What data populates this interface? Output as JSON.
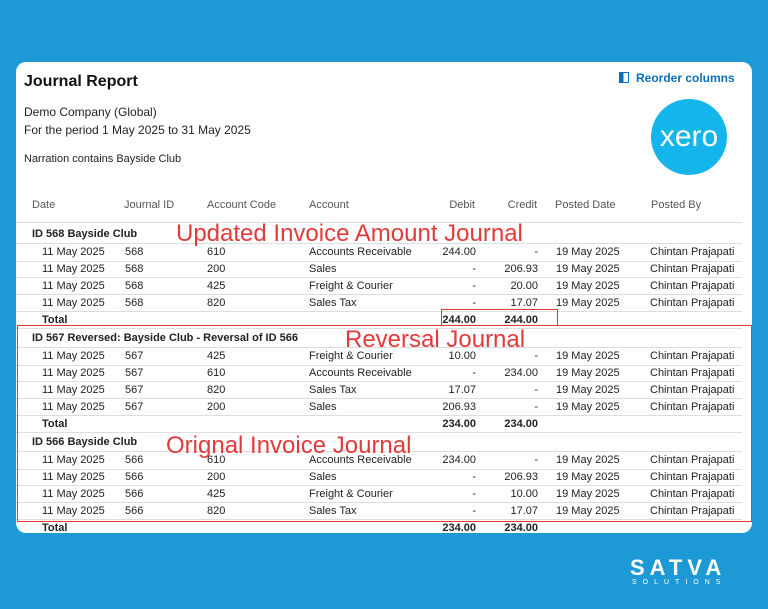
{
  "header": {
    "title": "Journal Report",
    "reorder": "Reorder columns",
    "company": "Demo Company (Global)",
    "period": "For the period 1 May 2025 to 31 May 2025",
    "narration": "Narration contains Bayside Club",
    "logo": "xero"
  },
  "columns": [
    "Date",
    "Journal ID",
    "Account Code",
    "Account",
    "Debit",
    "Credit",
    "Posted Date",
    "Posted By"
  ],
  "journals": [
    {
      "title": "ID 568 Bayside Club",
      "annotation": "Updated Invoice Amount Journal",
      "rows": [
        [
          "11 May 2025",
          "568",
          "610",
          "Accounts Receivable",
          "244.00",
          "-",
          "19 May 2025",
          "Chintan Prajapati"
        ],
        [
          "11 May 2025",
          "568",
          "200",
          "Sales",
          "-",
          "206.93",
          "19 May 2025",
          "Chintan Prajapati"
        ],
        [
          "11 May 2025",
          "568",
          "425",
          "Freight & Courier",
          "-",
          "20.00",
          "19 May 2025",
          "Chintan Prajapati"
        ],
        [
          "11 May 2025",
          "568",
          "820",
          "Sales Tax",
          "-",
          "17.07",
          "19 May 2025",
          "Chintan Prajapati"
        ]
      ],
      "total": {
        "label": "Total",
        "debit": "244.00",
        "credit": "244.00"
      }
    },
    {
      "title": "ID 567 Reversed: Bayside Club - Reversal of ID 566",
      "annotation": "Reversal Journal",
      "rows": [
        [
          "11 May 2025",
          "567",
          "425",
          "Freight & Courier",
          "10.00",
          "-",
          "19 May 2025",
          "Chintan Prajapati"
        ],
        [
          "11 May 2025",
          "567",
          "610",
          "Accounts Receivable",
          "-",
          "234.00",
          "19 May 2025",
          "Chintan Prajapati"
        ],
        [
          "11 May 2025",
          "567",
          "820",
          "Sales Tax",
          "17.07",
          "-",
          "19 May 2025",
          "Chintan Prajapati"
        ],
        [
          "11 May 2025",
          "567",
          "200",
          "Sales",
          "206.93",
          "-",
          "19 May 2025",
          "Chintan Prajapati"
        ]
      ],
      "total": {
        "label": "Total",
        "debit": "234.00",
        "credit": "234.00"
      }
    },
    {
      "title": "ID 566 Bayside Club",
      "annotation": "Orignal Invoice Journal",
      "rows": [
        [
          "11 May 2025",
          "566",
          "610",
          "Accounts Receivable",
          "234.00",
          "-",
          "19 May 2025",
          "Chintan Prajapati"
        ],
        [
          "11 May 2025",
          "566",
          "200",
          "Sales",
          "-",
          "206.93",
          "19 May 2025",
          "Chintan Prajapati"
        ],
        [
          "11 May 2025",
          "566",
          "425",
          "Freight & Courier",
          "-",
          "10.00",
          "19 May 2025",
          "Chintan Prajapati"
        ],
        [
          "11 May 2025",
          "566",
          "820",
          "Sales Tax",
          "-",
          "17.07",
          "19 May 2025",
          "Chintan Prajapati"
        ]
      ],
      "total": {
        "label": "Total",
        "debit": "234.00",
        "credit": "234.00"
      }
    }
  ],
  "brand": {
    "name": "SATVA",
    "tagline": "SOLUTIONS"
  }
}
